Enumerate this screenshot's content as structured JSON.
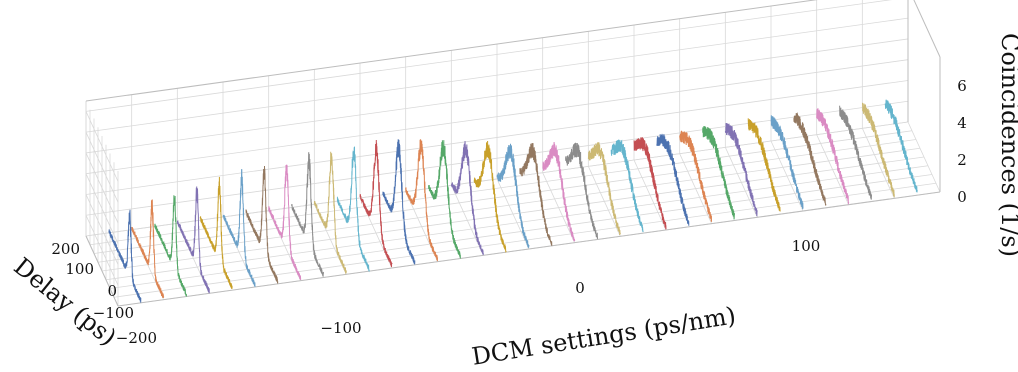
{
  "chart_data": {
    "type": "line",
    "title": "",
    "xlabel": "DCM settings (ps/nm)",
    "ylabel": "Delay (ps)",
    "zlabel": "Coincidences (1/s)",
    "x_ticks": [
      "−100",
      "0",
      "100"
    ],
    "y_ticks": [
      "200",
      "100",
      "0",
      "−100",
      "−200"
    ],
    "z_ticks": [
      "0",
      "2",
      "4",
      "6"
    ],
    "x_range": [
      -180,
      180
    ],
    "y_range": [
      -200,
      200
    ],
    "z_range": [
      0,
      6.5
    ],
    "grid": true,
    "series_dcm_settings": [
      -170,
      -160,
      -150,
      -140,
      -130,
      -120,
      -110,
      -100,
      -90,
      -80,
      -70,
      -60,
      -50,
      -40,
      -30,
      -20,
      -10,
      0,
      10,
      20,
      30,
      40,
      50,
      60,
      70,
      80,
      90,
      100,
      110,
      120,
      130,
      140,
      150,
      160,
      170
    ],
    "peak_coincidences": [
      3.0,
      3.2,
      3.4,
      3.5,
      3.6,
      3.8,
      3.8,
      3.9,
      4.0,
      4.0,
      4.1,
      4.0,
      3.9,
      3.7,
      3.5,
      3.2,
      3.0,
      2.7,
      2.5,
      2.3,
      2.1,
      1.9,
      1.8,
      1.7,
      1.6,
      1.5,
      1.5,
      1.4,
      1.4,
      1.3,
      1.3,
      1.3,
      1.2,
      1.2,
      1.2
    ],
    "peak_widths_ps": [
      18,
      18,
      19,
      19,
      20,
      21,
      22,
      23,
      25,
      27,
      30,
      33,
      37,
      42,
      48,
      54,
      60,
      66,
      72,
      78,
      84,
      90,
      96,
      102,
      108,
      114,
      118,
      122,
      126,
      130,
      133,
      136,
      138,
      140,
      142
    ],
    "peak_delay_ps": [
      -60,
      -55,
      -50,
      -45,
      -40,
      -35,
      -30,
      -25,
      -20,
      -15,
      -10,
      -5,
      0,
      5,
      10,
      15,
      20,
      25,
      30,
      35,
      40,
      45,
      50,
      55,
      60,
      65,
      70,
      75,
      80,
      85,
      90,
      95,
      100,
      105,
      110
    ],
    "colors": [
      "#4c72b0",
      "#dd8452",
      "#55a868",
      "#8172b3",
      "#c8a02a",
      "#6aa0c8",
      "#937860",
      "#da8bc3",
      "#8c8c8c",
      "#ccb974",
      "#64b5cd",
      "#c44e52"
    ]
  }
}
